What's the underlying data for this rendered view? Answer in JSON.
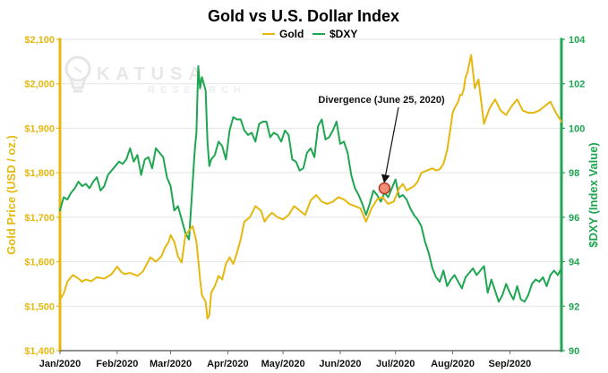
{
  "chart_data": {
    "type": "line",
    "title": "Gold vs U.S. Dollar Index",
    "legend": {
      "position": "top-center",
      "entries": [
        {
          "name": "Gold",
          "color": "#e6b70f"
        },
        {
          "name": "$DXY",
          "color": "#1ea650"
        }
      ]
    },
    "xlabel": "",
    "left_axis": {
      "label": "Gold Price (USD / oz.)",
      "color": "#e6b70f",
      "ylim": [
        1400,
        2100
      ],
      "ticks": [
        1400,
        1500,
        1600,
        1700,
        1800,
        1900,
        2000,
        2100
      ],
      "tick_labels": [
        "$1,400",
        "$1,500",
        "$1,600",
        "$1,700",
        "$1,800",
        "$1,900",
        "$2,000",
        "$2,100"
      ]
    },
    "right_axis": {
      "label": "$DXY (Index Value)",
      "color": "#1ea650",
      "ylim": [
        90,
        104
      ],
      "ticks": [
        90,
        92,
        94,
        96,
        98,
        100,
        102,
        104
      ],
      "tick_labels": [
        "90",
        "92",
        "94",
        "96",
        "98",
        "100",
        "102",
        "104"
      ]
    },
    "x_axis": {
      "range_days": [
        0,
        272
      ],
      "tick_days": [
        0,
        31,
        60,
        91,
        121,
        152,
        182,
        213,
        244
      ],
      "tick_labels": [
        "Jan/2020",
        "Feb/2020",
        "Mar/2020",
        "Apr/2020",
        "May/2020",
        "Jun/2020",
        "Jul/2020",
        "Aug/2020",
        "Sep/2020"
      ]
    },
    "series": [
      {
        "name": "Gold",
        "axis": "left",
        "color": "#e6b70f",
        "x": [
          0,
          2,
          4,
          7,
          10,
          12,
          14,
          17,
          20,
          24,
          28,
          31,
          33,
          35,
          38,
          42,
          45,
          49,
          52,
          55,
          57,
          59,
          60,
          62,
          64,
          66,
          68,
          70,
          72,
          74,
          75,
          76,
          77,
          79,
          80,
          81,
          82,
          84,
          86,
          88,
          90,
          92,
          94,
          96,
          98,
          100,
          103,
          106,
          109,
          111,
          113,
          115,
          118,
          121,
          124,
          127,
          130,
          133,
          136,
          139,
          142,
          145,
          148,
          151,
          154,
          157,
          160,
          163,
          166,
          169,
          172,
          175,
          178,
          181,
          184,
          186,
          188,
          190,
          192,
          194,
          196,
          199,
          202,
          204,
          206,
          208,
          210,
          212,
          213,
          214,
          216,
          217,
          218,
          219,
          220,
          221,
          223,
          225,
          227,
          230,
          233,
          236,
          239,
          242,
          245,
          248,
          251,
          254,
          257,
          260,
          263,
          266,
          269,
          272
        ],
        "values": [
          1515,
          1528,
          1555,
          1570,
          1562,
          1555,
          1560,
          1556,
          1565,
          1562,
          1572,
          1589,
          1578,
          1572,
          1575,
          1568,
          1578,
          1610,
          1600,
          1612,
          1632,
          1645,
          1660,
          1645,
          1612,
          1598,
          1660,
          1670,
          1680,
          1645,
          1605,
          1560,
          1525,
          1510,
          1472,
          1480,
          1530,
          1545,
          1568,
          1560,
          1595,
          1610,
          1595,
          1620,
          1650,
          1690,
          1700,
          1725,
          1715,
          1690,
          1702,
          1710,
          1700,
          1695,
          1705,
          1725,
          1715,
          1705,
          1738,
          1750,
          1735,
          1730,
          1735,
          1745,
          1740,
          1730,
          1725,
          1720,
          1690,
          1720,
          1740,
          1745,
          1730,
          1735,
          1765,
          1775,
          1760,
          1765,
          1770,
          1780,
          1800,
          1805,
          1810,
          1805,
          1808,
          1820,
          1850,
          1905,
          1935,
          1945,
          1960,
          1975,
          1975,
          1988,
          2015,
          2025,
          2065,
          1990,
          2010,
          1910,
          1945,
          1965,
          1940,
          1930,
          1950,
          1965,
          1940,
          1935,
          1935,
          1940,
          1950,
          1960,
          1935,
          1915
        ]
      },
      {
        "name": "$DXY",
        "axis": "right",
        "color": "#1ea650",
        "x": [
          0,
          2,
          4,
          6,
          8,
          10,
          12,
          14,
          16,
          18,
          20,
          22,
          24,
          26,
          28,
          30,
          32,
          34,
          36,
          38,
          40,
          42,
          44,
          46,
          48,
          50,
          52,
          54,
          56,
          58,
          60,
          62,
          64,
          66,
          68,
          70,
          72,
          73,
          74,
          75,
          76,
          77,
          78,
          79,
          80,
          81,
          82,
          84,
          86,
          88,
          90,
          92,
          94,
          96,
          98,
          100,
          102,
          104,
          106,
          108,
          110,
          112,
          114,
          116,
          118,
          120,
          122,
          124,
          126,
          128,
          130,
          132,
          134,
          136,
          138,
          140,
          142,
          144,
          146,
          148,
          150,
          152,
          154,
          156,
          158,
          160,
          162,
          164,
          166,
          168,
          170,
          172,
          174,
          176,
          178,
          180,
          182,
          184,
          186,
          188,
          190,
          192,
          194,
          196,
          198,
          200,
          202,
          204,
          206,
          208,
          210,
          212,
          214,
          216,
          218,
          220,
          222,
          224,
          226,
          228,
          230,
          232,
          234,
          236,
          238,
          240,
          242,
          244,
          246,
          248,
          250,
          252,
          254,
          256,
          258,
          260,
          262,
          264,
          266,
          268,
          270,
          272
        ],
        "values": [
          96.3,
          96.9,
          96.8,
          97.1,
          97.3,
          97.6,
          97.4,
          97.5,
          97.3,
          97.6,
          97.8,
          97.2,
          97.4,
          97.9,
          98.1,
          98.3,
          98.5,
          98.4,
          98.6,
          99.1,
          98.5,
          98.8,
          97.9,
          98.6,
          98.7,
          98.2,
          99.1,
          98.9,
          98.7,
          97.8,
          97.4,
          96.3,
          96.5,
          95.9,
          95.3,
          95.0,
          97.6,
          98.9,
          99.8,
          102.8,
          101.8,
          102.3,
          102.0,
          101.7,
          99.4,
          98.3,
          98.6,
          98.8,
          99.4,
          99.2,
          98.6,
          99.9,
          100.5,
          100.4,
          100.4,
          99.9,
          99.7,
          99.8,
          99.4,
          100.2,
          100.3,
          100.3,
          99.6,
          99.8,
          99.7,
          99.4,
          99.9,
          99.7,
          98.6,
          98.5,
          98.1,
          98.2,
          98.9,
          99.1,
          98.7,
          100.1,
          100.4,
          99.5,
          99.6,
          99.9,
          100.3,
          99.3,
          99.4,
          98.9,
          97.9,
          97.3,
          97.0,
          96.6,
          96.1,
          96.6,
          97.2,
          97.0,
          96.7,
          97.1,
          96.9,
          97.3,
          97.7,
          96.9,
          97.0,
          96.8,
          96.4,
          96.1,
          95.9,
          95.6,
          94.9,
          94.4,
          93.7,
          93.3,
          93.1,
          93.6,
          92.9,
          93.2,
          93.4,
          93.1,
          92.8,
          93.3,
          93.5,
          93.7,
          93.4,
          93.6,
          93.8,
          92.6,
          93.2,
          92.7,
          92.2,
          92.5,
          93.0,
          92.6,
          92.3,
          92.9,
          92.3,
          92.2,
          92.5,
          93.0,
          93.2,
          93.1,
          93.3,
          92.9,
          93.4,
          93.6,
          93.4,
          93.7
        ]
      }
    ],
    "annotations": [
      {
        "text": "Divergence (June 25, 2020)",
        "x_day": 176,
        "value_gold": 1765
      }
    ]
  },
  "watermark": {
    "brand": "KATUSA",
    "sub": "RESEARCH"
  }
}
